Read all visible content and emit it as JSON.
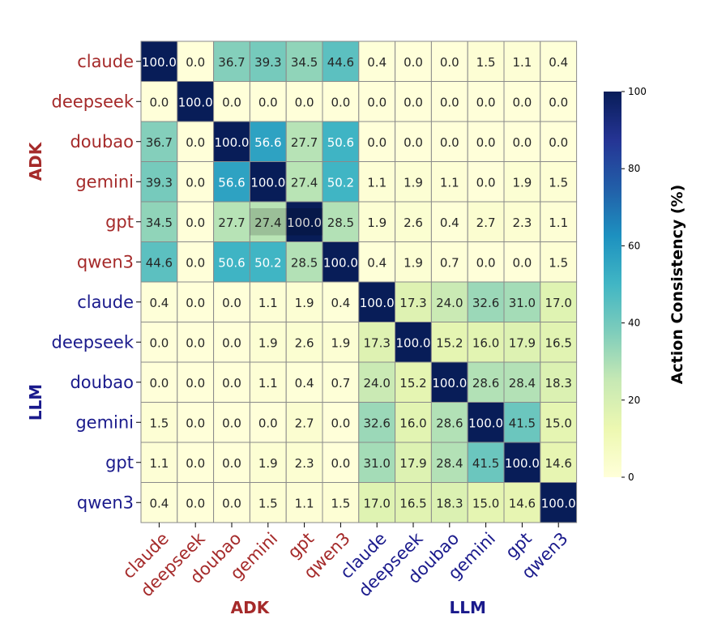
{
  "chart_data": {
    "type": "heatmap",
    "title": "",
    "row_labels": [
      "claude",
      "deepseek",
      "doubao",
      "gemini",
      "gpt",
      "qwen3",
      "claude",
      "deepseek",
      "doubao",
      "gemini",
      "gpt",
      "qwen3"
    ],
    "col_labels": [
      "claude",
      "deepseek",
      "doubao",
      "gemini",
      "gpt",
      "qwen3",
      "claude",
      "deepseek",
      "doubao",
      "gemini",
      "gpt",
      "qwen3"
    ],
    "groups": [
      {
        "name": "ADK",
        "color": "#a52a2a",
        "count": 6
      },
      {
        "name": "LLM",
        "color": "#1a1a8c",
        "count": 6
      }
    ],
    "values": [
      [
        100.0,
        0.0,
        36.7,
        39.3,
        34.5,
        44.6,
        0.4,
        0.0,
        0.0,
        1.5,
        1.1,
        0.4
      ],
      [
        0.0,
        100.0,
        0.0,
        0.0,
        0.0,
        0.0,
        0.0,
        0.0,
        0.0,
        0.0,
        0.0,
        0.0
      ],
      [
        36.7,
        0.0,
        100.0,
        56.6,
        27.7,
        50.6,
        0.0,
        0.0,
        0.0,
        0.0,
        0.0,
        0.0
      ],
      [
        39.3,
        0.0,
        56.6,
        100.0,
        27.4,
        50.2,
        1.1,
        1.9,
        1.1,
        0.0,
        1.9,
        1.5
      ],
      [
        34.5,
        0.0,
        27.7,
        27.4,
        100.0,
        28.5,
        1.9,
        2.6,
        0.4,
        2.7,
        2.3,
        1.1
      ],
      [
        44.6,
        0.0,
        50.6,
        50.2,
        28.5,
        100.0,
        0.4,
        1.9,
        0.7,
        0.0,
        0.0,
        1.5
      ],
      [
        0.4,
        0.0,
        0.0,
        1.1,
        1.9,
        0.4,
        100.0,
        17.3,
        24.0,
        32.6,
        31.0,
        17.0
      ],
      [
        0.0,
        0.0,
        0.0,
        1.9,
        2.6,
        1.9,
        17.3,
        100.0,
        15.2,
        16.0,
        17.9,
        16.5
      ],
      [
        0.0,
        0.0,
        0.0,
        1.1,
        0.4,
        0.7,
        24.0,
        15.2,
        100.0,
        28.6,
        28.4,
        18.3
      ],
      [
        1.5,
        0.0,
        0.0,
        0.0,
        2.7,
        0.0,
        32.6,
        16.0,
        28.6,
        100.0,
        41.5,
        15.0
      ],
      [
        1.1,
        0.0,
        0.0,
        1.9,
        2.3,
        0.0,
        31.0,
        17.9,
        28.4,
        41.5,
        100.0,
        14.6
      ],
      [
        0.4,
        0.0,
        0.0,
        1.5,
        1.1,
        1.5,
        17.0,
        16.5,
        18.3,
        15.0,
        14.6,
        100.0
      ]
    ],
    "value_format": "one decimal",
    "colorbar": {
      "label": "Action Consistency (%)",
      "range": [
        0,
        100
      ],
      "ticks": [
        0,
        20,
        40,
        60,
        80,
        100
      ],
      "colormap": "YlGnBu"
    },
    "highlighted_cell": {
      "row": 4,
      "col": 3
    }
  }
}
